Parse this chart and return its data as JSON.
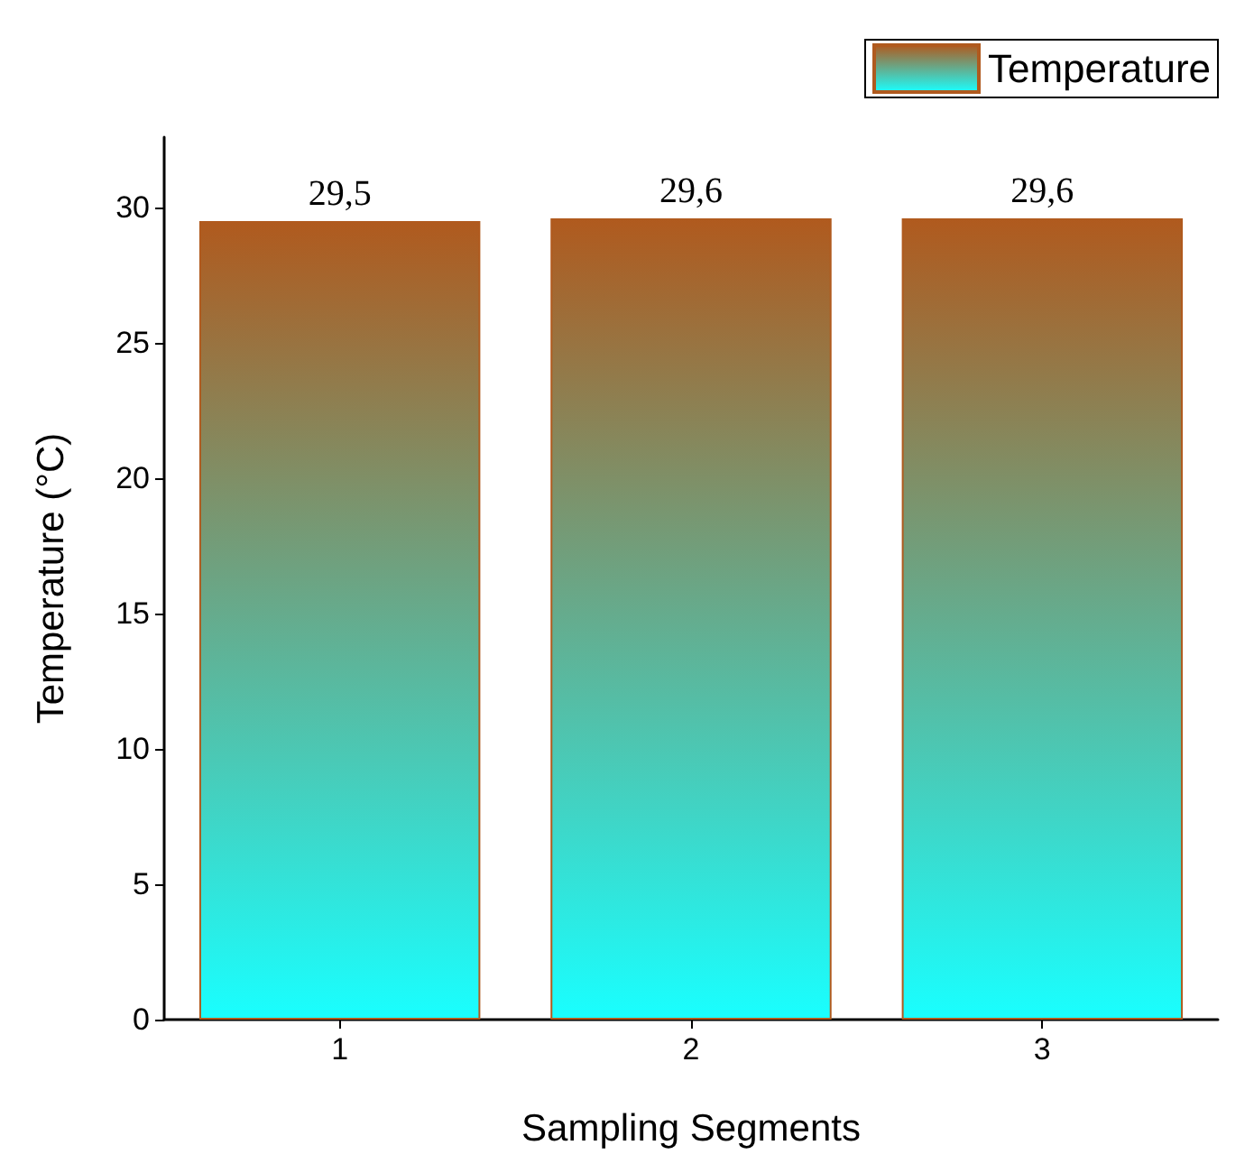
{
  "chart_data": {
    "type": "bar",
    "xlabel": "Sampling Segments",
    "ylabel": "Temperature (°C)",
    "categories": [
      "1",
      "2",
      "3"
    ],
    "series": [
      {
        "name": "Temperature",
        "color": "#b05a1e",
        "values": [
          29.5,
          29.6,
          29.6
        ],
        "value_labels": [
          "29,5",
          "29,6",
          "29,6"
        ]
      }
    ],
    "ylim": [
      0,
      32.6
    ],
    "yticks": [
      0,
      5,
      10,
      15,
      20,
      25,
      30
    ],
    "grid": false,
    "legend": "top right"
  }
}
